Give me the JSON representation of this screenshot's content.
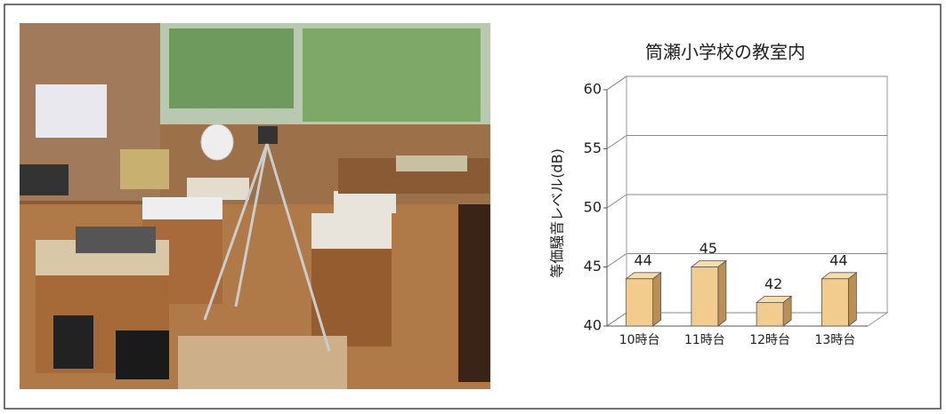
{
  "chart_data": {
    "type": "bar3d",
    "title": "筒瀬小学校の教室内",
    "y_label": "等価騒音レベル(dB)",
    "categories": [
      "10時台",
      "11時台",
      "12時台",
      "13時台"
    ],
    "values": [
      44,
      45,
      42,
      44
    ],
    "color": "#f2cb8e",
    "ylim": [
      40,
      60
    ],
    "yticks": [
      40,
      45,
      50,
      55,
      60
    ],
    "grid": true
  }
}
